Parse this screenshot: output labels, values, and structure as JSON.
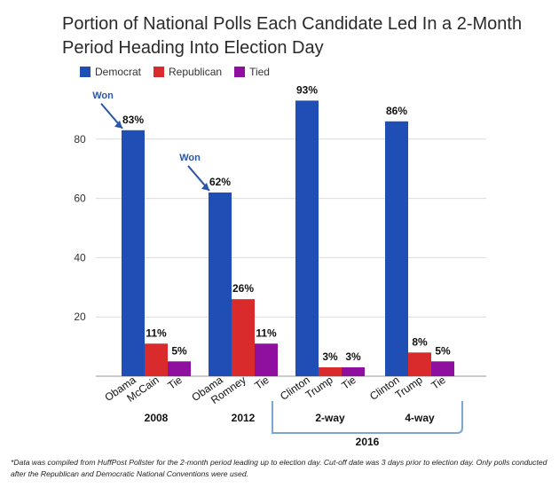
{
  "chart_data": {
    "type": "bar",
    "title": "Portion of National Polls Each Candidate Led In a 2-Month Period Heading Into Election Day",
    "ylabel": "",
    "xlabel": "",
    "ylim": [
      0,
      100
    ],
    "yticks": [
      20,
      40,
      60,
      80
    ],
    "grid": true,
    "legend_position": "top-left",
    "legend": [
      {
        "name": "Democrat",
        "color": "#1f4fb4"
      },
      {
        "name": "Republican",
        "color": "#d92b2b"
      },
      {
        "name": "Tied",
        "color": "#8f0f9e"
      }
    ],
    "groups": [
      {
        "year": "2008",
        "bars": [
          {
            "label": "Obama",
            "series": "Democrat",
            "value": 83,
            "value_label": "83%"
          },
          {
            "label": "McCain",
            "series": "Republican",
            "value": 11,
            "value_label": "11%"
          },
          {
            "label": "Tie",
            "series": "Tied",
            "value": 5,
            "value_label": "5%"
          }
        ]
      },
      {
        "year": "2012",
        "bars": [
          {
            "label": "Obama",
            "series": "Democrat",
            "value": 62,
            "value_label": "62%"
          },
          {
            "label": "Romney",
            "series": "Republican",
            "value": 26,
            "value_label": "26%"
          },
          {
            "label": "Tie",
            "series": "Tied",
            "value": 11,
            "value_label": "11%"
          }
        ]
      },
      {
        "year": "2-way",
        "bars": [
          {
            "label": "Clinton",
            "series": "Democrat",
            "value": 93,
            "value_label": "93%"
          },
          {
            "label": "Trump",
            "series": "Republican",
            "value": 3,
            "value_label": "3%"
          },
          {
            "label": "Tie",
            "series": "Tied",
            "value": 3,
            "value_label": "3%"
          }
        ]
      },
      {
        "year": "4-way",
        "bars": [
          {
            "label": "Clinton",
            "series": "Democrat",
            "value": 86,
            "value_label": "86%"
          },
          {
            "label": "Trump",
            "series": "Republican",
            "value": 8,
            "value_label": "8%"
          },
          {
            "label": "Tie",
            "series": "Tied",
            "value": 5,
            "value_label": "5%"
          }
        ]
      }
    ],
    "annotations": [
      {
        "text": "Won",
        "group": 0,
        "bar": 0
      },
      {
        "text": "Won",
        "group": 1,
        "bar": 0
      }
    ],
    "bracket_label": "2016"
  },
  "footnote": "*Data was compiled from HuffPost Pollster for the 2-month period leading up to election day. Cut-off date was 3 days prior to election day. Only polls conducted after the Republican and Democratic National Conventions were used."
}
